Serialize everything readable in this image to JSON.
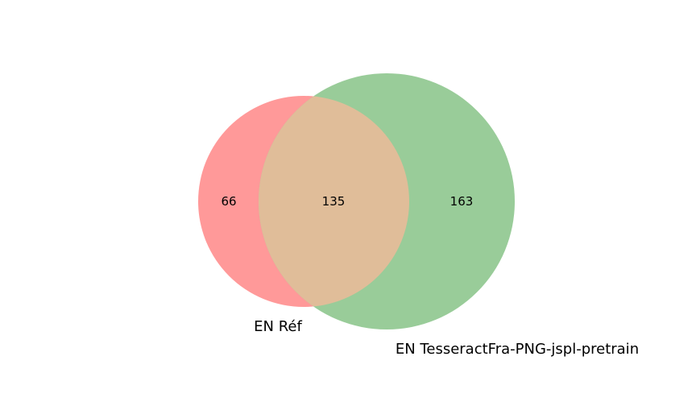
{
  "chart_data": {
    "type": "venn",
    "sets": [
      {
        "name": "EN Réf",
        "size": 201,
        "color": "#ff9999"
      },
      {
        "name": "EN TesseractFra-PNG-jspl-pretrain",
        "size": 298,
        "color": "#99cc99"
      }
    ],
    "regions": [
      {
        "sets": [
          "EN Réf"
        ],
        "value": 66
      },
      {
        "sets": [
          "EN Réf",
          "EN TesseractFra-PNG-jspl-pretrain"
        ],
        "value": 135
      },
      {
        "sets": [
          "EN TesseractFra-PNG-jspl-pretrain"
        ],
        "value": 163
      }
    ],
    "overlap_color": "#e0bd99"
  },
  "labels": {
    "left_only": "66",
    "both": "135",
    "right_only": "163",
    "set_a": "EN Réf",
    "set_b": "EN TesseractFra-PNG-jspl-pretrain"
  }
}
